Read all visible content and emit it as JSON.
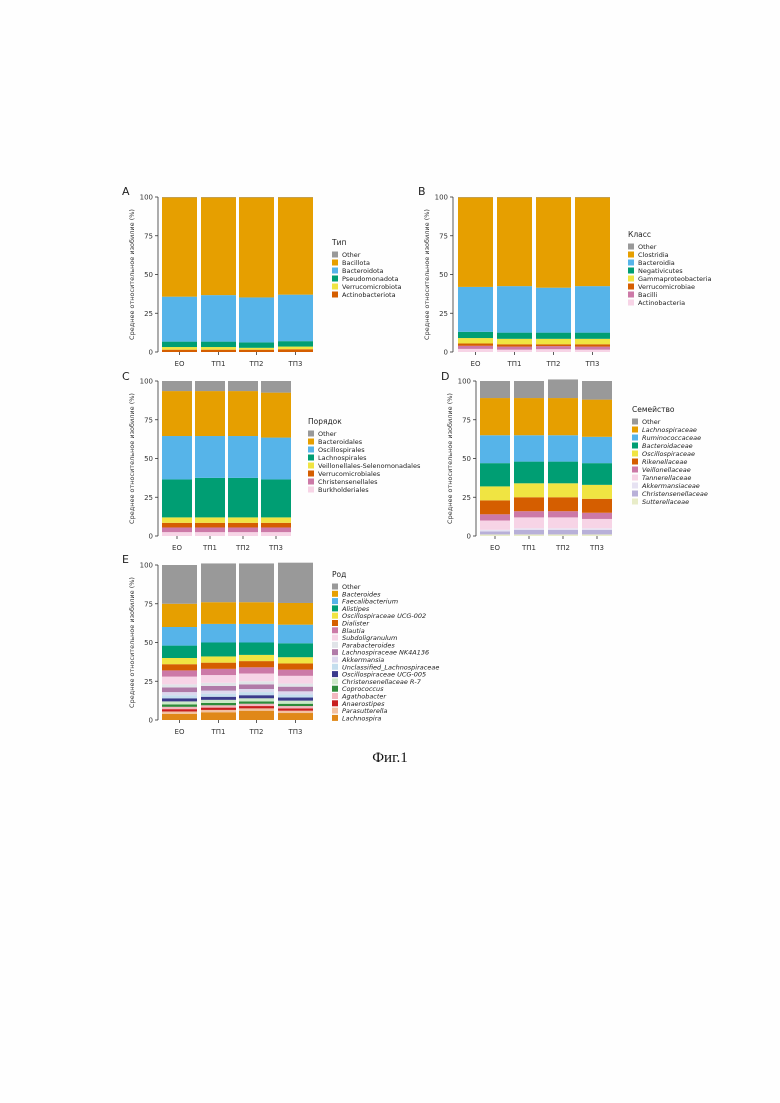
{
  "figure_caption": "Фиг.1",
  "colors": {
    "Other": "#999999",
    "orange": "#E69F00",
    "skyblue": "#56B4E9",
    "green": "#009E73",
    "yellow": "#F0E442",
    "vermillion": "#D55E00",
    "pink": "#CC79A7",
    "lightpink": "#F7D4E6",
    "lavender": "#B8B0D8"
  },
  "chart_data": [
    {
      "panel": "A",
      "type": "bar",
      "stacked": true,
      "categories": [
        "EO",
        "ТП1",
        "ТП2",
        "ТП3"
      ],
      "ylabel": "Среднее относительное изобилие (%)",
      "ylim": [
        0,
        100
      ],
      "yticks": [
        0,
        25,
        50,
        75,
        100
      ],
      "legend_title": "Тип",
      "legend_position": "right",
      "series": [
        {
          "name": "Other",
          "color": "#999999",
          "values": [
            0.3,
            0.3,
            0.3,
            0.3
          ]
        },
        {
          "name": "Bacillota",
          "color": "#E69F00",
          "values": [
            64,
            63,
            64.5,
            62.7
          ]
        },
        {
          "name": "Bacteroidota",
          "color": "#56B4E9",
          "values": [
            29,
            30,
            29,
            30
          ]
        },
        {
          "name": "Pseudomonadota",
          "color": "#009E73",
          "values": [
            3.5,
            3.5,
            3.5,
            3.5
          ]
        },
        {
          "name": "Verrucomicrobiota",
          "color": "#F0E442",
          "values": [
            1.7,
            1.7,
            1.2,
            1.7
          ]
        },
        {
          "name": "Actinobacteriota",
          "color": "#D55E00",
          "values": [
            1.5,
            1.5,
            1.5,
            1.8
          ]
        }
      ]
    },
    {
      "panel": "B",
      "type": "bar",
      "stacked": true,
      "categories": [
        "EO",
        "ТП1",
        "ТП2",
        "ТП3"
      ],
      "ylabel": "Среднее относительное изобилие (%)",
      "ylim": [
        0,
        100
      ],
      "yticks": [
        0,
        25,
        50,
        75,
        100
      ],
      "legend_title": "Класс",
      "legend_position": "right",
      "series": [
        {
          "name": "Other",
          "color": "#999999",
          "values": [
            0.3,
            0.3,
            0.3,
            0.3
          ]
        },
        {
          "name": "Clostridia",
          "color": "#E69F00",
          "values": [
            57.7,
            57.2,
            58.2,
            57.2
          ]
        },
        {
          "name": "Bacteroidia",
          "color": "#56B4E9",
          "values": [
            29,
            30,
            29,
            30
          ]
        },
        {
          "name": "Negativicutes",
          "color": "#009E73",
          "values": [
            4,
            4,
            4,
            4
          ]
        },
        {
          "name": "Gammaproteobacteria",
          "color": "#F0E442",
          "values": [
            3.5,
            3.5,
            3.5,
            3.5
          ]
        },
        {
          "name": "Verrucomicrobiae",
          "color": "#D55E00",
          "values": [
            1.5,
            1.5,
            1.2,
            1.5
          ]
        },
        {
          "name": "Bacilli",
          "color": "#CC79A7",
          "values": [
            2,
            2,
            2,
            2
          ]
        },
        {
          "name": "Actinobacteria",
          "color": "#F7D4E6",
          "values": [
            2,
            1.5,
            1.8,
            1.5
          ]
        }
      ]
    },
    {
      "panel": "C",
      "type": "bar",
      "stacked": true,
      "categories": [
        "EO",
        "ТП1",
        "ТП2",
        "ТП3"
      ],
      "ylabel": "Среднее относительное изобилие (%)",
      "ylim": [
        0,
        100
      ],
      "yticks": [
        0,
        25,
        50,
        75,
        100
      ],
      "legend_title": "Порядок",
      "legend_position": "right",
      "series": [
        {
          "name": "Other",
          "color": "#999999",
          "values": [
            6.5,
            6.5,
            6.5,
            7.5
          ]
        },
        {
          "name": "Bacteroidales",
          "color": "#E69F00",
          "values": [
            29,
            29,
            29,
            29
          ]
        },
        {
          "name": "Oscillospirales",
          "color": "#56B4E9",
          "values": [
            28,
            27,
            27,
            27
          ]
        },
        {
          "name": "Lachnospirales",
          "color": "#009E73",
          "values": [
            24.5,
            25.5,
            25.5,
            24.5
          ]
        },
        {
          "name": "Veillonellales-Selenomonadales",
          "color": "#F0E442",
          "values": [
            3.5,
            3.5,
            3.5,
            3.5
          ]
        },
        {
          "name": "Verrucomicrobiales",
          "color": "#D55E00",
          "values": [
            3,
            3,
            3,
            3
          ]
        },
        {
          "name": "Christensenellales",
          "color": "#CC79A7",
          "values": [
            3,
            3,
            3,
            3
          ]
        },
        {
          "name": "Burkholderiales",
          "color": "#F7D4E6",
          "values": [
            2.5,
            2.5,
            2.5,
            2.5
          ]
        }
      ]
    },
    {
      "panel": "D",
      "type": "bar",
      "stacked": true,
      "categories": [
        "EO",
        "ТП1",
        "ТП2",
        "ТП3"
      ],
      "ylabel": "Среднее относительное изобилие (%)",
      "ylim": [
        0,
        100
      ],
      "yticks": [
        0,
        25,
        50,
        75,
        100
      ],
      "legend_title": "Семейство",
      "legend_position": "right",
      "series": [
        {
          "name": "Other",
          "color": "#999999",
          "values": [
            11,
            11,
            12,
            12
          ]
        },
        {
          "name": "Lachnospiraceae",
          "color": "#E69F00",
          "values": [
            24,
            24,
            24,
            24
          ]
        },
        {
          "name": "Ruminococcaceae",
          "color": "#56B4E9",
          "values": [
            18,
            17,
            17,
            17
          ]
        },
        {
          "name": "Bacteroidaceae",
          "color": "#009E73",
          "values": [
            15,
            14,
            14,
            14
          ]
        },
        {
          "name": "Oscillospiraceae",
          "color": "#F0E442",
          "values": [
            9,
            9,
            9,
            9
          ]
        },
        {
          "name": "Rikenellaceae",
          "color": "#D55E00",
          "values": [
            9,
            9,
            9,
            9
          ]
        },
        {
          "name": "Veillonellaceae",
          "color": "#CC79A7",
          "values": [
            4,
            4,
            4,
            4
          ]
        },
        {
          "name": "Tannerellaceae",
          "color": "#F7D4E6",
          "values": [
            6,
            7,
            7,
            6
          ]
        },
        {
          "name": "Akkermansiaceae",
          "color": "#E6E2F2",
          "values": [
            1,
            1,
            1,
            1
          ]
        },
        {
          "name": "Christensenellaceae",
          "color": "#B8B0D8",
          "values": [
            2,
            3,
            3,
            3
          ]
        },
        {
          "name": "Sutterellaceae",
          "color": "#E8ECC8",
          "values": [
            1,
            1,
            1,
            1
          ]
        }
      ]
    },
    {
      "panel": "E",
      "type": "bar",
      "stacked": true,
      "categories": [
        "EO",
        "ТП1",
        "ТП2",
        "ТП3"
      ],
      "ylabel": "Среднее относительное изобилие (%)",
      "ylim": [
        0,
        100
      ],
      "yticks": [
        0,
        25,
        50,
        75,
        100
      ],
      "legend_title": "Род",
      "legend_position": "right",
      "series": [
        {
          "name": "Other",
          "color": "#999999",
          "values": [
            25,
            25,
            25,
            26
          ]
        },
        {
          "name": "Bacteroides",
          "color": "#E69F00",
          "values": [
            15,
            14,
            14,
            14
          ]
        },
        {
          "name": "Faecalibacterium",
          "color": "#56B4E9",
          "values": [
            12,
            12,
            12,
            12
          ]
        },
        {
          "name": "Alistipes",
          "color": "#009E73",
          "values": [
            8,
            9,
            8,
            9
          ]
        },
        {
          "name": "Oscillospiraceae UCG-002",
          "color": "#F0E442",
          "values": [
            4,
            4,
            4,
            4
          ]
        },
        {
          "name": "Dialister",
          "color": "#D55E00",
          "values": [
            4,
            4,
            4,
            4
          ]
        },
        {
          "name": "Blautia",
          "color": "#CC79A7",
          "values": [
            4,
            4,
            4,
            4
          ]
        },
        {
          "name": "Subdoligranulum",
          "color": "#F7D4E6",
          "values": [
            5,
            5,
            5,
            5
          ]
        },
        {
          "name": "Parabacteroides",
          "color": "#E0E4E8",
          "values": [
            2,
            2,
            2,
            2
          ]
        },
        {
          "name": "Lachnospiraceae NK4A136",
          "color": "#B07AA8",
          "values": [
            3,
            3,
            3,
            3
          ]
        },
        {
          "name": "Akkermansia",
          "color": "#DCD8EE",
          "values": [
            2,
            2,
            2,
            2
          ]
        },
        {
          "name": "Unclassified_Lachnospiraceae",
          "color": "#C4DEEE",
          "values": [
            2,
            2,
            2,
            2
          ]
        },
        {
          "name": "Oscillospiraceae UCG-005",
          "color": "#3A3A8C",
          "values": [
            2,
            2,
            2,
            2
          ]
        },
        {
          "name": "Christensenellaceae R-7",
          "color": "#CCE8C8",
          "values": [
            2,
            2,
            2,
            2
          ]
        },
        {
          "name": "Coprococcus",
          "color": "#2E8B3A",
          "values": [
            1.5,
            1.5,
            1.5,
            1.5
          ]
        },
        {
          "name": "Agathobacter",
          "color": "#F2B8C0",
          "values": [
            1.5,
            1.5,
            1.5,
            1.5
          ]
        },
        {
          "name": "Anaerostipes",
          "color": "#C81E1E",
          "values": [
            1.5,
            1.5,
            1.5,
            1.5
          ]
        },
        {
          "name": "Parasutterella",
          "color": "#F2C0A0",
          "values": [
            1.5,
            1.5,
            1.5,
            1.5
          ]
        },
        {
          "name": "Lachnospira",
          "color": "#E08818",
          "values": [
            4,
            5,
            6,
            4.5
          ]
        }
      ]
    }
  ]
}
